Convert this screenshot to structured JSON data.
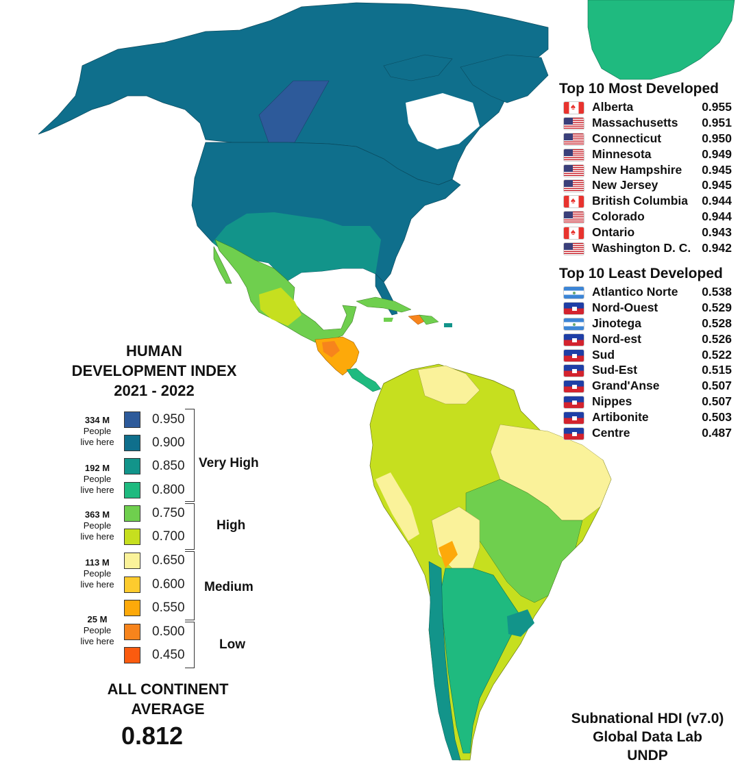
{
  "legend": {
    "title_lines": [
      "HUMAN",
      "DEVELOPMENT INDEX",
      "2021 - 2022"
    ],
    "population_labels": [
      {
        "value": "334 M",
        "line1": "People",
        "line2": "live here"
      },
      {
        "value": "192 M",
        "line1": "People",
        "line2": "live here"
      },
      {
        "value": "363 M",
        "line1": "People",
        "line2": "live here"
      },
      {
        "value": "113 M",
        "line1": "People",
        "line2": "live here"
      },
      {
        "value": "25 M",
        "line1": "People",
        "line2": "live here"
      }
    ],
    "scale": [
      {
        "value": "0.950",
        "color": "#2d5a9a"
      },
      {
        "value": "0.900",
        "color": "#0f6f8c"
      },
      {
        "value": "0.850",
        "color": "#12948a"
      },
      {
        "value": "0.800",
        "color": "#1fba7f"
      },
      {
        "value": "0.750",
        "color": "#6fcf4e"
      },
      {
        "value": "0.700",
        "color": "#c6df1f"
      },
      {
        "value": "0.650",
        "color": "#faf29a"
      },
      {
        "value": "0.600",
        "color": "#fdcb2e"
      },
      {
        "value": "0.550",
        "color": "#fda90a"
      },
      {
        "value": "0.500",
        "color": "#f7841c"
      },
      {
        "value": "0.450",
        "color": "#fb5b0f"
      }
    ],
    "categories": [
      "Very High",
      "High",
      "Medium",
      "Low"
    ],
    "average_label_lines": [
      "ALL CONTINENT",
      "AVERAGE"
    ],
    "average_value": "0.812"
  },
  "most_developed": {
    "title": "Top 10 Most Developed",
    "items": [
      {
        "flag": "canada",
        "name": "Alberta",
        "value": "0.955"
      },
      {
        "flag": "usa",
        "name": "Massachusetts",
        "value": "0.951"
      },
      {
        "flag": "usa",
        "name": "Connecticut",
        "value": "0.950"
      },
      {
        "flag": "usa",
        "name": "Minnesota",
        "value": "0.949"
      },
      {
        "flag": "usa",
        "name": "New Hampshire",
        "value": "0.945"
      },
      {
        "flag": "usa",
        "name": "New Jersey",
        "value": "0.945"
      },
      {
        "flag": "canada",
        "name": "British Columbia",
        "value": "0.944"
      },
      {
        "flag": "usa",
        "name": "Colorado",
        "value": "0.944"
      },
      {
        "flag": "canada",
        "name": "Ontario",
        "value": "0.943"
      },
      {
        "flag": "usa",
        "name": "Washington D. C.",
        "value": "0.942"
      }
    ]
  },
  "least_developed": {
    "title": "Top 10 Least Developed",
    "items": [
      {
        "flag": "nicaragua",
        "name": "Atlantico Norte",
        "value": "0.538"
      },
      {
        "flag": "haiti",
        "name": "Nord-Ouest",
        "value": "0.529"
      },
      {
        "flag": "nicaragua",
        "name": "Jinotega",
        "value": "0.528"
      },
      {
        "flag": "haiti",
        "name": "Nord-est",
        "value": "0.526"
      },
      {
        "flag": "haiti",
        "name": "Sud",
        "value": "0.522"
      },
      {
        "flag": "haiti",
        "name": "Sud-Est",
        "value": "0.515"
      },
      {
        "flag": "haiti",
        "name": "Grand'Anse",
        "value": "0.507"
      },
      {
        "flag": "haiti",
        "name": "Nippes",
        "value": "0.507"
      },
      {
        "flag": "haiti",
        "name": "Artibonite",
        "value": "0.503"
      },
      {
        "flag": "haiti",
        "name": "Centre",
        "value": "0.487"
      }
    ]
  },
  "source": {
    "lines": [
      "Subnational HDI (v7.0)",
      "Global Data Lab",
      "UNDP"
    ]
  },
  "map_colors": {
    "ocean": "#ffffff",
    "canada": "#0f6f8c",
    "alberta": "#2d5a9a",
    "usa": "#0f6f8c",
    "greenland": "#1fba7f",
    "mexico": "#6fcf4e",
    "central_america": "#fda90a",
    "south_america_main": "#c6df1f",
    "brazil_ne": "#faf29a",
    "brazil_south": "#6fcf4e",
    "argentina": "#1fba7f",
    "chile": "#12948a"
  }
}
